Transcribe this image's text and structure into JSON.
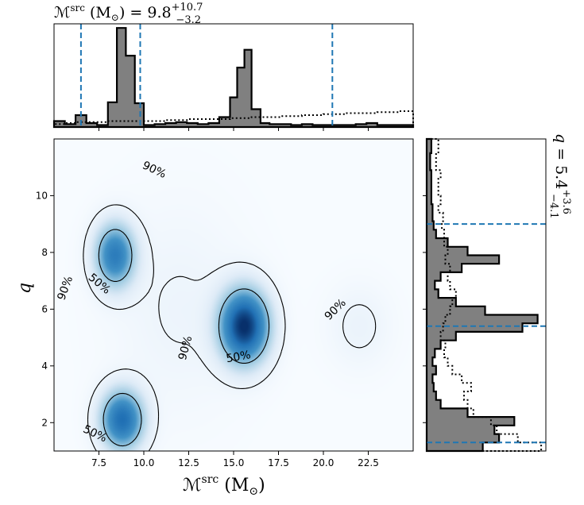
{
  "chart_data": [
    {
      "name": "top-marginal",
      "type": "histogram",
      "title_main": "ℳ",
      "title_sup": "src",
      "title_unit": " (M",
      "title_unit_sub": "⊙",
      "title_unit_close": ")",
      "title_eq": " = 9.8",
      "title_plus": "+10.7",
      "title_minus": "−3.2",
      "xlim": [
        5.0,
        25.0
      ],
      "bin_edges": [
        5.0,
        5.6,
        6.2,
        6.8,
        7.4,
        8.0,
        8.5,
        9.0,
        9.5,
        10.0,
        10.6,
        11.2,
        11.8,
        12.4,
        13.0,
        13.6,
        14.2,
        14.8,
        15.2,
        15.6,
        16.0,
        16.5,
        17.0,
        17.6,
        18.2,
        18.8,
        19.4,
        20.0,
        20.6,
        21.2,
        21.8,
        22.4,
        23.0,
        23.6,
        24.2,
        25.0
      ],
      "filled_counts": [
        0.06,
        0.03,
        0.12,
        0.04,
        0.02,
        0.25,
        1.0,
        0.72,
        0.24,
        0.02,
        0.03,
        0.04,
        0.05,
        0.04,
        0.03,
        0.04,
        0.1,
        0.3,
        0.6,
        0.78,
        0.18,
        0.04,
        0.03,
        0.03,
        0.02,
        0.03,
        0.02,
        0.02,
        0.02,
        0.02,
        0.03,
        0.04,
        0.02,
        0.02,
        0.02
      ],
      "dotted_counts": [
        0.03,
        0.04,
        0.05,
        0.05,
        0.05,
        0.06,
        0.06,
        0.06,
        0.06,
        0.06,
        0.06,
        0.07,
        0.07,
        0.08,
        0.08,
        0.08,
        0.08,
        0.09,
        0.09,
        0.09,
        0.1,
        0.1,
        0.1,
        0.11,
        0.11,
        0.12,
        0.12,
        0.13,
        0.13,
        0.14,
        0.14,
        0.14,
        0.15,
        0.15,
        0.16
      ],
      "dashed_lines": [
        6.5,
        9.8,
        20.5
      ]
    },
    {
      "name": "joint-density",
      "type": "heatmap",
      "xlabel_main": "ℳ",
      "xlabel_sup": "src",
      "xlabel_unit": " (M",
      "xlabel_unit_sub": "⊙",
      "xlabel_unit_close": ")",
      "ylabel": "q",
      "xlim": [
        5.0,
        25.0
      ],
      "ylim": [
        1.0,
        12.0
      ],
      "xticks": [
        7.5,
        10.0,
        12.5,
        15.0,
        17.5,
        20.0,
        22.5
      ],
      "xtick_labels": [
        "7.5",
        "10.0",
        "12.5",
        "15.0",
        "17.5",
        "20.0",
        "22.5"
      ],
      "yticks": [
        2,
        4,
        6,
        8,
        10
      ],
      "ytick_labels": [
        "2",
        "4",
        "6",
        "8",
        "10"
      ],
      "peaks": [
        {
          "x": 15.6,
          "y": 5.4,
          "amp": 1.0,
          "sx": 0.9,
          "sy": 0.85
        },
        {
          "x": 8.4,
          "y": 7.9,
          "amp": 0.65,
          "sx": 0.75,
          "sy": 0.75
        },
        {
          "x": 8.8,
          "y": 2.1,
          "amp": 0.75,
          "sx": 0.8,
          "sy": 0.7
        },
        {
          "x": 22.0,
          "y": 5.4,
          "amp": 0.06,
          "sx": 1.2,
          "sy": 1.0
        },
        {
          "x": 12.0,
          "y": 6.0,
          "amp": 0.05,
          "sx": 2.5,
          "sy": 2.5
        }
      ],
      "contour_labels": [
        {
          "text": "90%",
          "x": 10.5,
          "y": 10.8,
          "rot": 25
        },
        {
          "text": "90%",
          "x": 5.8,
          "y": 6.7,
          "rot": -70
        },
        {
          "text": "50%",
          "x": 7.4,
          "y": 6.8,
          "rot": 40
        },
        {
          "text": "90%",
          "x": 12.5,
          "y": 4.6,
          "rot": -75
        },
        {
          "text": "50%",
          "x": 15.3,
          "y": 4.2,
          "rot": -10
        },
        {
          "text": "90%",
          "x": 20.8,
          "y": 5.9,
          "rot": -45
        },
        {
          "text": "50%",
          "x": 7.2,
          "y": 1.5,
          "rot": 25
        }
      ]
    },
    {
      "name": "right-marginal",
      "type": "histogram",
      "orientation": "horizontal",
      "title_main": "q",
      "title_eq": " = 5.4",
      "title_plus": "+3.6",
      "title_minus": "−4.1",
      "ylim": [
        1.0,
        12.0
      ],
      "bin_edges": [
        1.0,
        1.3,
        1.6,
        1.9,
        2.2,
        2.5,
        2.8,
        3.1,
        3.4,
        3.7,
        4.0,
        4.3,
        4.6,
        4.9,
        5.2,
        5.5,
        5.8,
        6.1,
        6.4,
        6.7,
        7.0,
        7.3,
        7.6,
        7.9,
        8.2,
        8.5,
        8.8,
        9.1,
        9.4,
        9.7,
        10.0,
        10.3,
        10.6,
        10.9,
        11.2,
        11.5,
        12.0
      ],
      "filled_counts": [
        0.48,
        0.62,
        0.58,
        0.75,
        0.35,
        0.12,
        0.08,
        0.06,
        0.05,
        0.08,
        0.05,
        0.07,
        0.12,
        0.25,
        0.82,
        0.95,
        0.5,
        0.25,
        0.1,
        0.07,
        0.12,
        0.3,
        0.62,
        0.35,
        0.18,
        0.08,
        0.06,
        0.05,
        0.05,
        0.04,
        0.04,
        0.04,
        0.04,
        0.03,
        0.03,
        0.04
      ],
      "dotted_counts": [
        0.98,
        0.78,
        0.6,
        0.55,
        0.4,
        0.35,
        0.32,
        0.38,
        0.3,
        0.22,
        0.18,
        0.15,
        0.16,
        0.12,
        0.14,
        0.16,
        0.2,
        0.22,
        0.25,
        0.2,
        0.18,
        0.2,
        0.16,
        0.18,
        0.15,
        0.15,
        0.13,
        0.14,
        0.1,
        0.12,
        0.1,
        0.1,
        0.12,
        0.08,
        0.08,
        0.1
      ],
      "dashed_lines": [
        1.3,
        5.4,
        9.0
      ]
    }
  ],
  "colors": {
    "hist_fill": "#808080",
    "dashed": "#1f77b4",
    "density_high": "#08306b",
    "density_low": "#f7fbff"
  }
}
